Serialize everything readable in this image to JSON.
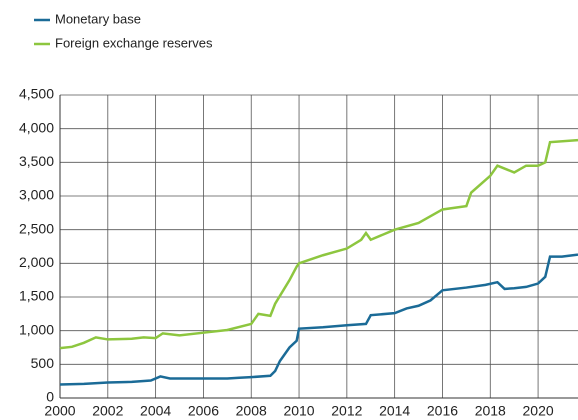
{
  "chart_data": {
    "type": "line",
    "series": [
      {
        "name": "Monetary base",
        "color": "#1b6b97",
        "x": [
          2000,
          2001,
          2002,
          2003,
          2003.8,
          2004.2,
          2004.6,
          2005,
          2006,
          2007,
          2007.5,
          2008,
          2008.8,
          2009,
          2009.2,
          2009.6,
          2009.9,
          2010,
          2011,
          2012,
          2012.8,
          2013,
          2014,
          2014.5,
          2015,
          2015.5,
          2016,
          2017,
          2017.8,
          2018.3,
          2018.6,
          2019,
          2019.5,
          2020,
          2020.3,
          2020.5,
          2021,
          2021.67
        ],
        "values": [
          200,
          210,
          230,
          240,
          260,
          320,
          290,
          290,
          290,
          290,
          300,
          310,
          330,
          400,
          550,
          750,
          850,
          1030,
          1050,
          1080,
          1100,
          1230,
          1260,
          1330,
          1370,
          1450,
          1600,
          1640,
          1680,
          1720,
          1620,
          1630,
          1650,
          1700,
          1800,
          2100,
          2100,
          2130
        ]
      },
      {
        "name": "Foreign exchange reserves",
        "color": "#8dc63f",
        "x": [
          2000,
          2000.5,
          2001,
          2001.5,
          2002,
          2003,
          2003.5,
          2004,
          2004.3,
          2005,
          2006,
          2007,
          2008,
          2008.3,
          2008.8,
          2009,
          2009.6,
          2009.9,
          2010,
          2011,
          2012,
          2012.6,
          2012.8,
          2013,
          2014,
          2015,
          2015.5,
          2016,
          2017,
          2017.2,
          2018,
          2018.3,
          2019,
          2019.5,
          2020,
          2020.3,
          2020.5,
          2021.67
        ],
        "values": [
          740,
          760,
          820,
          900,
          870,
          880,
          900,
          890,
          960,
          930,
          970,
          1010,
          1100,
          1250,
          1220,
          1400,
          1750,
          1950,
          2000,
          2120,
          2220,
          2350,
          2450,
          2350,
          2500,
          2600,
          2700,
          2800,
          2850,
          3050,
          3300,
          3450,
          3350,
          3450,
          3450,
          3500,
          3800,
          3830
        ]
      }
    ],
    "xlim": [
      2000,
      2021.67
    ],
    "xticks": [
      2000,
      2002,
      2004,
      2006,
      2008,
      2010,
      2012,
      2014,
      2016,
      2018,
      2020
    ],
    "ylim": [
      0,
      4500
    ],
    "yticks": [
      0,
      500,
      {
        "value": 1000,
        "label": "1,000"
      },
      {
        "value": 1500,
        "label": "1,500"
      },
      {
        "value": 2000,
        "label": "2,000"
      },
      {
        "value": 2500,
        "label": "2,500"
      },
      {
        "value": 3000,
        "label": "3,000"
      },
      {
        "value": 3500,
        "label": "3,500"
      },
      {
        "value": 4000,
        "label": "4,000"
      },
      {
        "value": 4500,
        "label": "4,500"
      }
    ],
    "grid": true,
    "legend": "top-left"
  }
}
